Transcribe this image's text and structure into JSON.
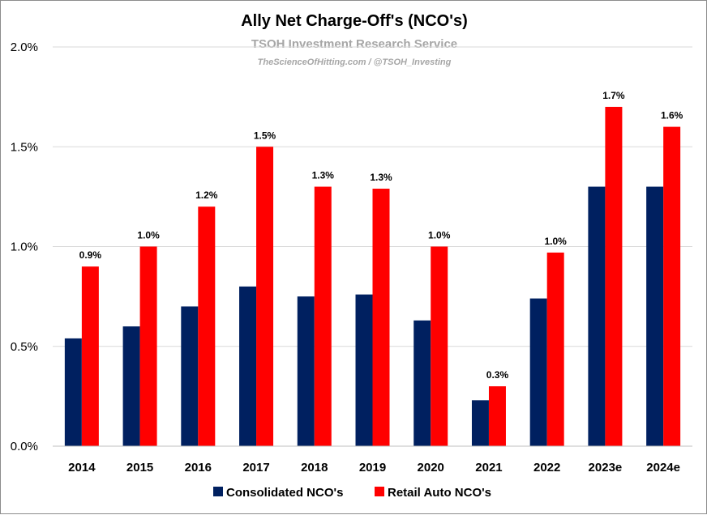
{
  "chart_data": {
    "type": "bar",
    "title": "Ally Net Charge-Off's (NCO's)",
    "subtitle": "TSOH Investment Research Service",
    "source_note": "TheScienceOfHitting.com / @TSOH_Investing",
    "categories": [
      "2014",
      "2015",
      "2016",
      "2017",
      "2018",
      "2019",
      "2020",
      "2021",
      "2022",
      "2023e",
      "2024e"
    ],
    "series": [
      {
        "name": "Consolidated NCO's",
        "color": "#002060",
        "values": [
          0.54,
          0.6,
          0.7,
          0.8,
          0.75,
          0.76,
          0.63,
          0.23,
          0.74,
          1.3,
          1.3
        ],
        "labels": null
      },
      {
        "name": "Retail Auto NCO's",
        "color": "#ff0000",
        "values": [
          0.9,
          1.0,
          1.2,
          1.5,
          1.3,
          1.29,
          1.0,
          0.3,
          0.97,
          1.7,
          1.6
        ],
        "labels": [
          "0.9%",
          "1.0%",
          "1.2%",
          "1.5%",
          "1.3%",
          "1.3%",
          "1.0%",
          "0.3%",
          "1.0%",
          "1.7%",
          "1.6%"
        ]
      }
    ],
    "ylim": [
      0,
      2.0
    ],
    "yticks": [
      0,
      0.5,
      1.0,
      1.5,
      2.0
    ],
    "ytick_labels": [
      "0.0%",
      "0.5%",
      "1.0%",
      "1.5%",
      "2.0%"
    ],
    "grid": true,
    "legend_position": "bottom"
  }
}
